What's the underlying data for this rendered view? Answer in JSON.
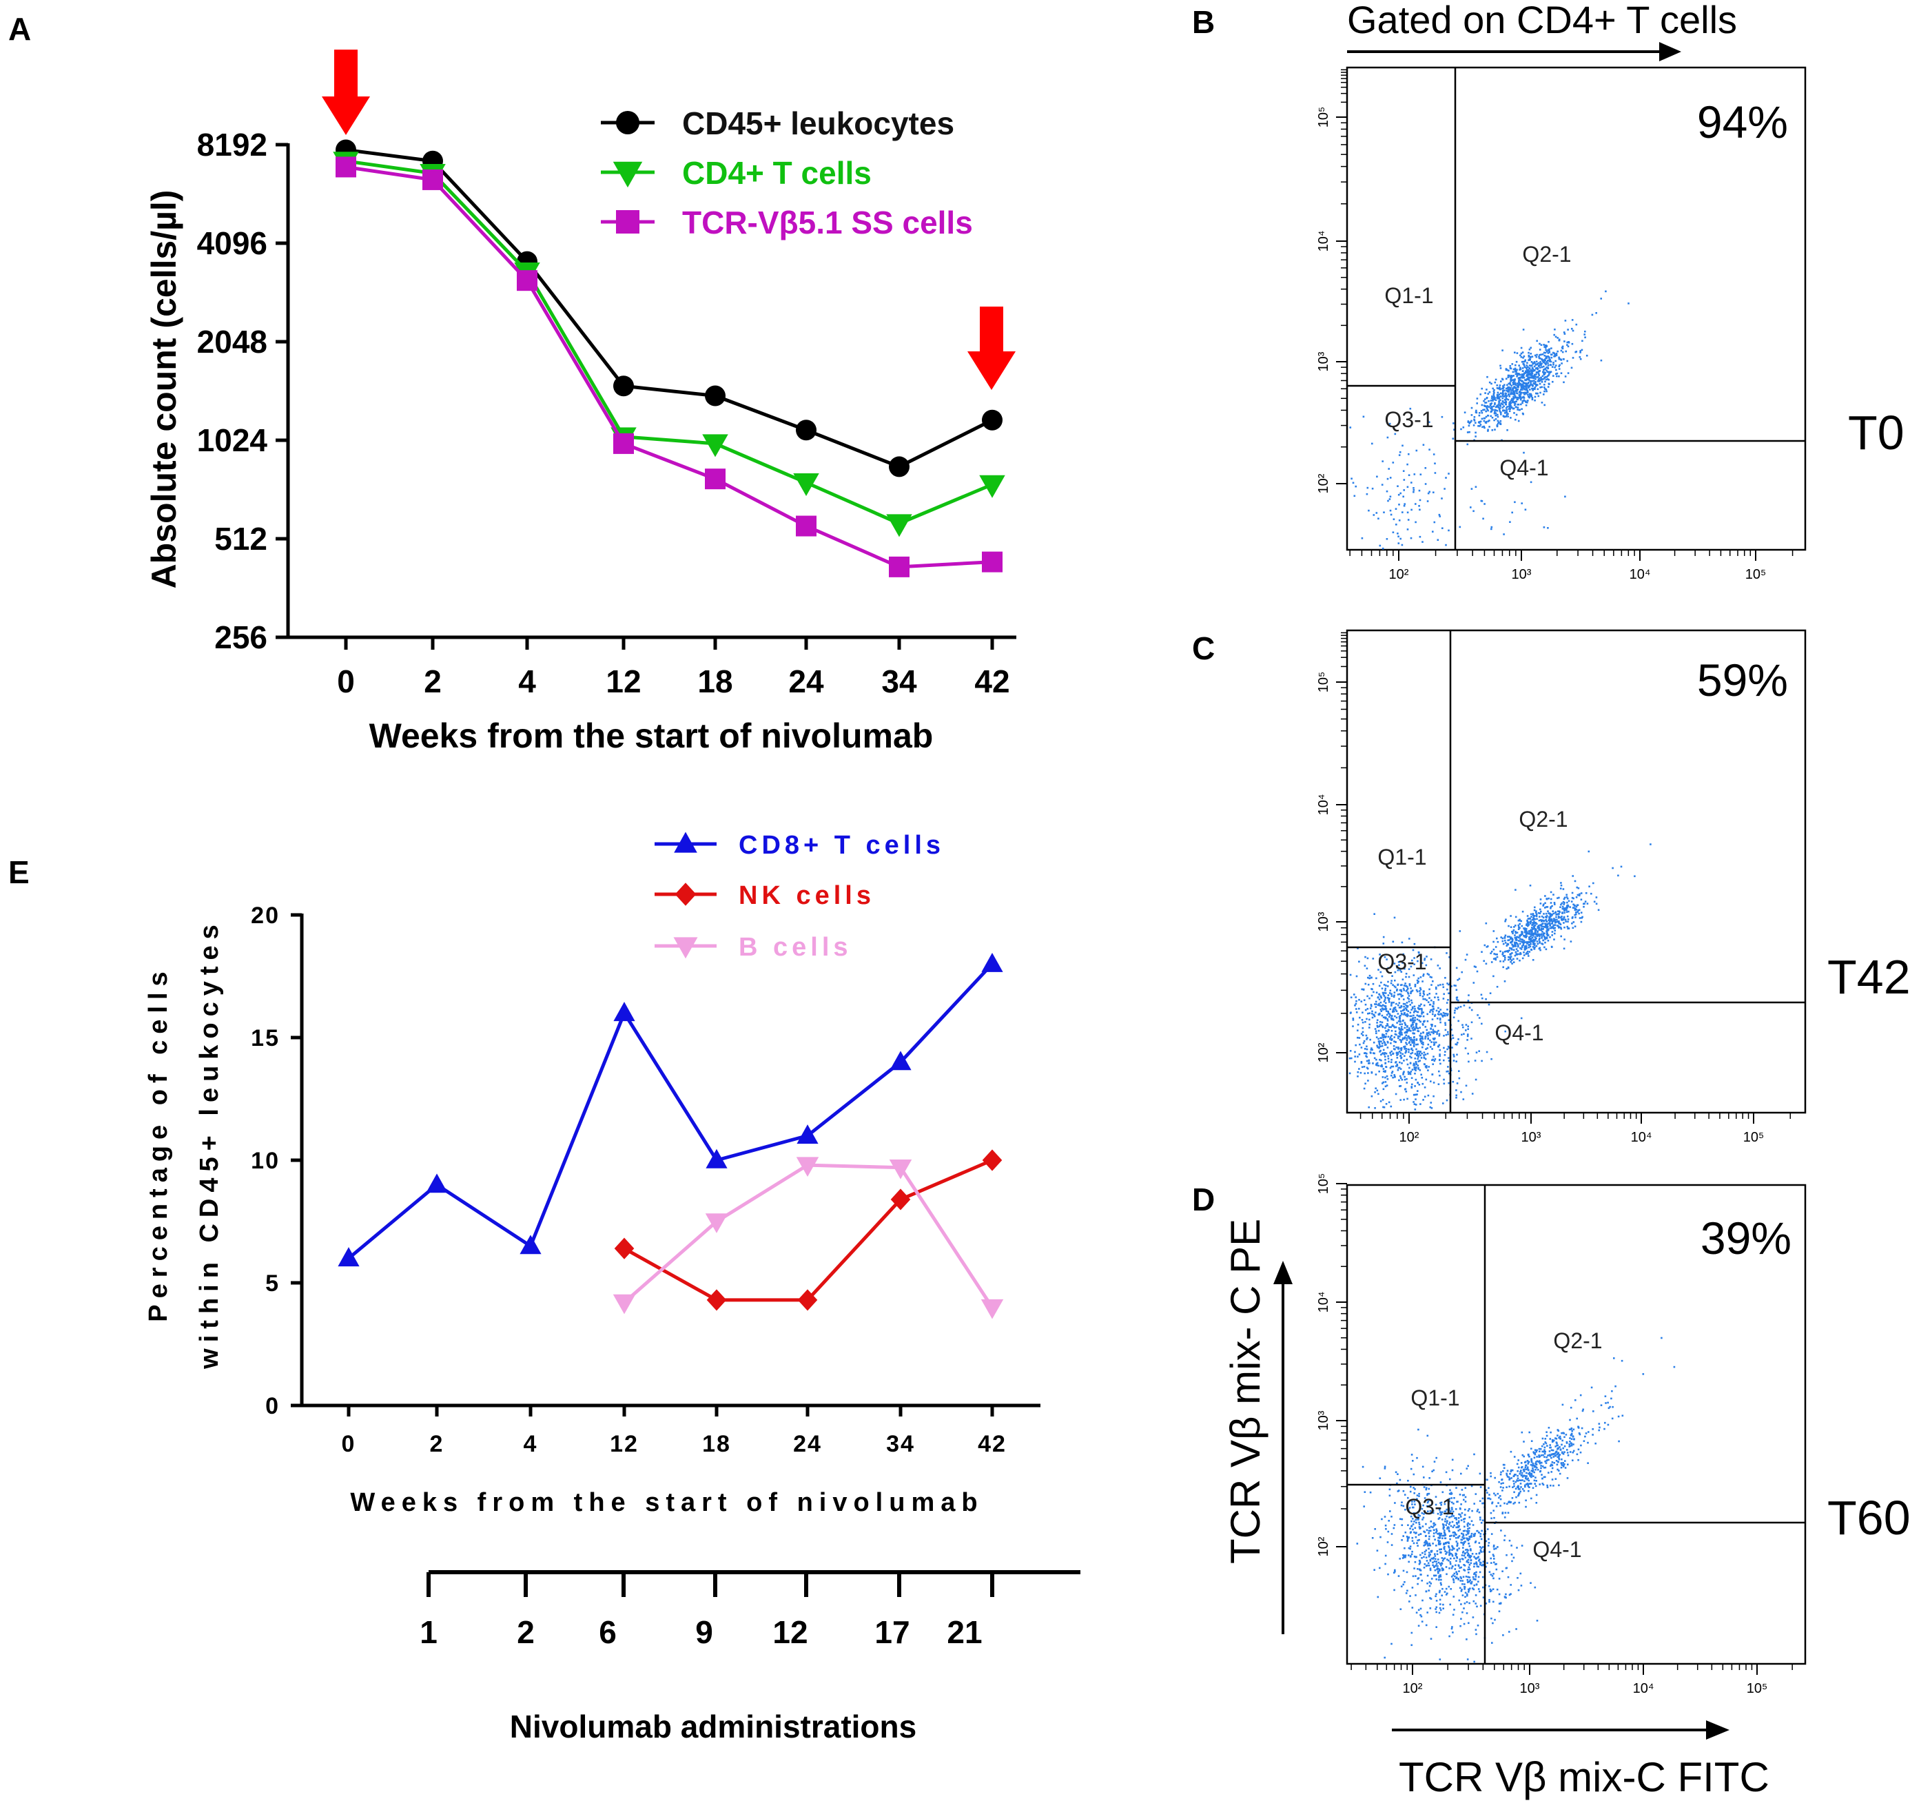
{
  "colors": {
    "black": "#000000",
    "green": "#10c010",
    "magenta": "#c010c0",
    "blue": "#1010e0",
    "red": "#e01010",
    "pink": "#f0a0e0",
    "arrow_red": "#ff0000",
    "dot_blue": "#2a7fe8"
  },
  "panels": {
    "A": {
      "letter": "A"
    },
    "B": {
      "letter": "B",
      "gated_label": "Gated on CD4+ T cells",
      "percent": "94%",
      "time_label": "T0",
      "quadrants": [
        "Q1-1",
        "Q2-1",
        "Q3-1",
        "Q4-1"
      ]
    },
    "C": {
      "letter": "C",
      "percent": "59%",
      "time_label": "T42",
      "quadrants": [
        "Q1-1",
        "Q2-1",
        "Q3-1",
        "Q4-1"
      ]
    },
    "D": {
      "letter": "D",
      "percent": "39%",
      "time_label": "T60",
      "quadrants": [
        "Q1-1",
        "Q2-1",
        "Q3-1",
        "Q4-1"
      ],
      "y_axis_label": "TCR Vβ mix- C PE",
      "x_axis_label": "TCR Vβ mix-C FITC"
    },
    "E": {
      "letter": "E"
    }
  },
  "flow_ticks": {
    "x": [
      "10²",
      "10³",
      "10⁴",
      "10⁵"
    ],
    "y": [
      "10²",
      "10³",
      "10⁴",
      "10⁵"
    ]
  },
  "chart_data": [
    {
      "panel": "A",
      "type": "line",
      "x_scale": "categorical",
      "y_scale": "log2",
      "categories": [
        "0",
        "2",
        "4",
        "12",
        "18",
        "24",
        "34",
        "42"
      ],
      "xlabel": "Weeks from the start of nivolumab",
      "ylabel": "Absolute count (cells/µl)",
      "ylim": [
        256,
        8192
      ],
      "yticks": [
        "256",
        "512",
        "1024",
        "2048",
        "4096",
        "8192"
      ],
      "ytick_values": [
        256,
        512,
        1024,
        2048,
        4096,
        8192
      ],
      "series": [
        {
          "name": "CD45+ leukocytes",
          "marker": "circle",
          "color": "#000000",
          "values": [
            7900,
            7300,
            3600,
            1500,
            1400,
            1100,
            850,
            1180
          ]
        },
        {
          "name": "CD4+ T cells",
          "marker": "triangle-down",
          "color": "#10c010",
          "values": [
            7300,
            6700,
            3350,
            1050,
            1000,
            760,
            570,
            750
          ]
        },
        {
          "name": "TCR-Vβ5.1 SS cells",
          "marker": "square",
          "color": "#c010c0",
          "values": [
            7000,
            6400,
            3150,
            1000,
            780,
            560,
            420,
            435
          ]
        }
      ],
      "annotations": [
        "treatment arrow at week 0",
        "treatment arrow at week 42"
      ]
    },
    {
      "panel": "E",
      "type": "line",
      "x_scale": "categorical",
      "categories": [
        "0",
        "2",
        "4",
        "12",
        "18",
        "24",
        "34",
        "42"
      ],
      "xlabel": "Weeks from the start of nivolumab",
      "ylabel_line1": "Percentage of cells",
      "ylabel_line2": "within CD45+ leukocytes",
      "ylim": [
        0,
        20
      ],
      "yticks": [
        "0",
        "5",
        "10",
        "15",
        "20"
      ],
      "ytick_values": [
        0,
        5,
        10,
        15,
        20
      ],
      "series": [
        {
          "name": "CD8+ T cells",
          "marker": "triangle-up",
          "color": "#1010e0",
          "values": [
            6,
            9,
            6.5,
            16,
            10,
            11,
            14,
            18
          ]
        },
        {
          "name": "NK cells",
          "marker": "diamond",
          "color": "#e01010",
          "values": [
            null,
            null,
            null,
            6.4,
            4.3,
            4.3,
            8.4,
            10
          ]
        },
        {
          "name": "B cells",
          "marker": "triangle-down",
          "color": "#f0a0e0",
          "values": [
            null,
            null,
            null,
            4.2,
            7.5,
            9.8,
            9.7,
            4
          ]
        }
      ],
      "secondary_axis": {
        "title": "Nivolumab administrations",
        "labels": [
          "1",
          "2",
          "6",
          "9",
          "12",
          "17",
          "21"
        ]
      }
    }
  ]
}
